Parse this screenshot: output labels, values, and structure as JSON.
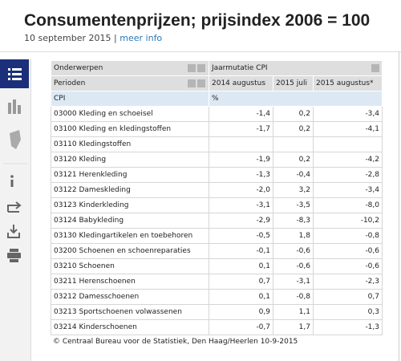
{
  "header": {
    "title": "Consumentenprijzen; prijsindex 2006 = 100",
    "date": "10 september 2015",
    "separator": "|",
    "link": "meer info"
  },
  "table": {
    "dimensions": [
      {
        "label": "Onderwerpen",
        "value": "Jaarmutatie CPI"
      },
      {
        "label": "Perioden",
        "columns": [
          "2014 augustus",
          "2015 juli",
          "2015 augustus*"
        ]
      },
      {
        "label": "CPI",
        "unit": "%"
      }
    ],
    "rows": [
      {
        "label": "03000 Kleding en schoeisel",
        "values": [
          "-1,4",
          "0,2",
          "-3,4"
        ]
      },
      {
        "label": "03100 Kleding en kledingstoffen",
        "values": [
          "-1,7",
          "0,2",
          "-4,1"
        ]
      },
      {
        "label": "03110 Kledingstoffen",
        "values": [
          null,
          null,
          null
        ]
      },
      {
        "label": "03120 Kleding",
        "values": [
          "-1,9",
          "0,2",
          "-4,2"
        ]
      },
      {
        "label": "03121 Herenkleding",
        "values": [
          "-1,3",
          "-0,4",
          "-2,8"
        ]
      },
      {
        "label": "03122 Dameskleding",
        "values": [
          "-2,0",
          "3,2",
          "-3,4"
        ]
      },
      {
        "label": "03123 Kinderkleding",
        "values": [
          "-3,1",
          "-3,5",
          "-8,0"
        ]
      },
      {
        "label": "03124 Babykleding",
        "values": [
          "-2,9",
          "-8,3",
          "-10,2"
        ]
      },
      {
        "label": "03130 Kledingartikelen en toebehoren",
        "values": [
          "-0,5",
          "1,8",
          "-0,8"
        ]
      },
      {
        "label": "03200 Schoenen en schoenreparaties",
        "values": [
          "-0,1",
          "-0,6",
          "-0,6"
        ]
      },
      {
        "label": "03210 Schoenen",
        "values": [
          "0,1",
          "-0,6",
          "-0,6"
        ]
      },
      {
        "label": "03211 Herenschoenen",
        "values": [
          "0,7",
          "-3,1",
          "-2,3"
        ]
      },
      {
        "label": "03212 Damesschoenen",
        "values": [
          "0,1",
          "-0,8",
          "0,7"
        ]
      },
      {
        "label": "03213 Sportschoenen volwassenen",
        "values": [
          "0,9",
          "1,1",
          "0,3"
        ]
      },
      {
        "label": "03214 Kinderschoenen",
        "values": [
          "-0,7",
          "1,7",
          "-1,3"
        ]
      }
    ]
  },
  "footer": "© Centraal Bureau voor de Statistiek, Den Haag/Heerlen 10-9-2015"
}
